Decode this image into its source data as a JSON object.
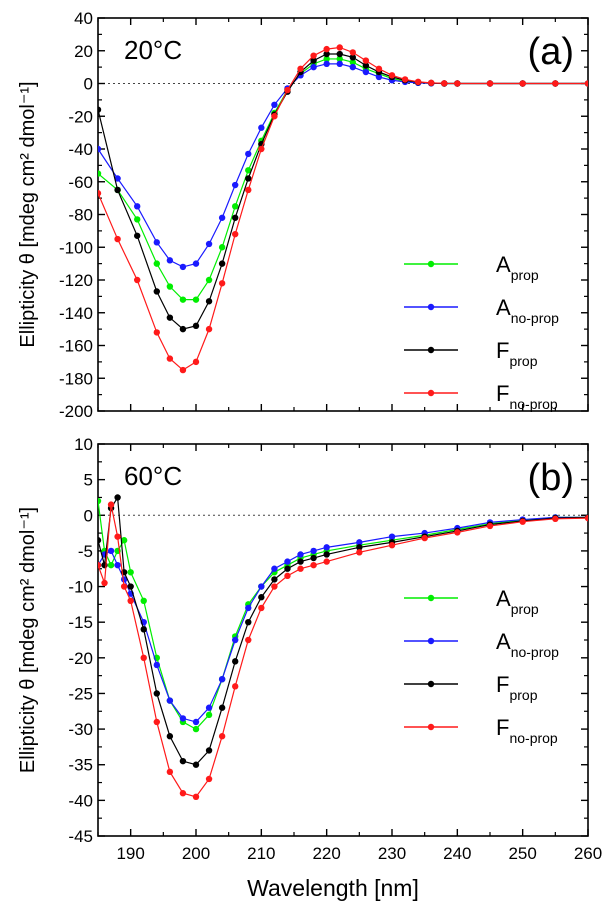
{
  "figure": {
    "xlabel": "Wavelength [nm]",
    "x_ticks": [
      "190",
      "200",
      "210",
      "220",
      "230",
      "240",
      "250",
      "260"
    ]
  },
  "legend_entries": [
    {
      "main": "A",
      "sub": "prop",
      "color": "#00ee00"
    },
    {
      "main": "A",
      "sub": "no-prop",
      "color": "#1a1aff"
    },
    {
      "main": "F",
      "sub": "prop",
      "color": "#000000"
    },
    {
      "main": "F",
      "sub": "no-prop",
      "color": "#ff1a1a"
    }
  ],
  "chart_data": [
    {
      "type": "line",
      "panel_label": "(a)",
      "temperature": "20°C",
      "ylabel": "Ellipticity θ [mdeg cm² dmol⁻¹]",
      "y_ticks": [
        "40",
        "20",
        "0",
        "-20",
        "-40",
        "-60",
        "-80",
        "-100",
        "-120",
        "-140",
        "-160",
        "-180",
        "-200"
      ],
      "xlim": [
        185,
        260
      ],
      "ylim": [
        -200,
        40
      ],
      "zero_line": "dotted",
      "legend_position": "lower-right",
      "series": [
        {
          "name": "A_prop",
          "color": "#00ee00",
          "x": [
            185,
            188,
            191,
            194,
            196,
            198,
            200,
            202,
            204,
            206,
            208,
            210,
            212,
            214,
            216,
            218,
            220,
            222,
            224,
            226,
            228,
            230,
            232,
            234,
            236,
            238,
            240,
            245,
            250,
            255,
            260
          ],
          "y": [
            -55,
            -65,
            -83,
            -110,
            -124,
            -132,
            -132,
            -120,
            -100,
            -75,
            -53,
            -35,
            -18,
            -4,
            6,
            12,
            15,
            15,
            13,
            9,
            6,
            3,
            1.5,
            0.6,
            0.2,
            0,
            0,
            0,
            0,
            0,
            0
          ]
        },
        {
          "name": "A_no-prop",
          "color": "#1a1aff",
          "x": [
            185,
            188,
            191,
            194,
            196,
            198,
            200,
            202,
            204,
            206,
            208,
            210,
            212,
            214,
            216,
            218,
            220,
            222,
            224,
            226,
            228,
            230,
            232,
            234,
            236,
            238,
            240,
            245,
            250,
            255,
            260
          ],
          "y": [
            -40,
            -58,
            -75,
            -97,
            -108,
            -112,
            -110,
            -98,
            -82,
            -62,
            -43,
            -27,
            -13,
            -3,
            5,
            10,
            12,
            12,
            10,
            7,
            4,
            2,
            1,
            0.4,
            0.1,
            0,
            0,
            0,
            0,
            0,
            0
          ]
        },
        {
          "name": "F_prop",
          "color": "#000000",
          "x": [
            185,
            188,
            191,
            194,
            196,
            198,
            200,
            202,
            204,
            206,
            208,
            210,
            212,
            214,
            216,
            218,
            220,
            222,
            224,
            226,
            228,
            230,
            232,
            234,
            236,
            238,
            240,
            245,
            250,
            255,
            260
          ],
          "y": [
            -16,
            -65,
            -93,
            -127,
            -143,
            -150,
            -148,
            -133,
            -110,
            -82,
            -58,
            -37,
            -19,
            -5,
            7,
            14,
            18,
            18,
            16,
            11,
            7,
            4,
            2,
            0.8,
            0.3,
            0,
            0,
            0,
            0,
            0,
            0
          ]
        },
        {
          "name": "F_no-prop",
          "color": "#ff1a1a",
          "x": [
            185,
            188,
            191,
            194,
            196,
            198,
            200,
            202,
            204,
            206,
            208,
            210,
            212,
            214,
            216,
            218,
            220,
            222,
            224,
            226,
            228,
            230,
            232,
            234,
            236,
            238,
            240,
            245,
            250,
            255,
            260
          ],
          "y": [
            -67,
            -95,
            -120,
            -152,
            -168,
            -175,
            -170,
            -150,
            -122,
            -92,
            -65,
            -40,
            -20,
            -4,
            9,
            17,
            21,
            22,
            19,
            14,
            9,
            5,
            2.5,
            1,
            0.4,
            0.1,
            0,
            0,
            0,
            0,
            0
          ]
        }
      ]
    },
    {
      "type": "line",
      "panel_label": "(b)",
      "temperature": "60°C",
      "ylabel": "Ellipticity θ [mdeg cm² dmol⁻¹]",
      "y_ticks": [
        "10",
        "5",
        "0",
        "-5",
        "-10",
        "-15",
        "-20",
        "-25",
        "-30",
        "-35",
        "-40",
        "-45"
      ],
      "xlim": [
        185,
        260
      ],
      "ylim": [
        -45,
        10
      ],
      "zero_line": "dotted",
      "legend_position": "lower-right",
      "series": [
        {
          "name": "A_prop",
          "color": "#00ee00",
          "x": [
            185,
            186,
            187,
            188,
            189,
            190,
            192,
            194,
            196,
            198,
            200,
            202,
            204,
            206,
            208,
            210,
            212,
            214,
            216,
            218,
            220,
            225,
            230,
            235,
            240,
            245,
            250,
            255,
            260
          ],
          "y": [
            2,
            -5,
            -7,
            -5,
            -3.5,
            -8,
            -12,
            -20,
            -26,
            -29,
            -30,
            -28,
            -23,
            -17,
            -12.5,
            -10,
            -8,
            -7,
            -6,
            -5.5,
            -5,
            -4.2,
            -3.5,
            -2.8,
            -2,
            -1.2,
            -0.7,
            -0.3,
            -0.3
          ]
        },
        {
          "name": "A_no-prop",
          "color": "#1a1aff",
          "x": [
            185,
            186,
            187,
            188,
            189,
            190,
            192,
            194,
            196,
            198,
            200,
            202,
            204,
            206,
            208,
            210,
            212,
            214,
            216,
            218,
            220,
            225,
            230,
            235,
            240,
            245,
            250,
            255,
            260
          ],
          "y": [
            -7,
            -5.5,
            -5,
            -7,
            -9,
            -11,
            -15,
            -21,
            -26,
            -28.5,
            -29,
            -27,
            -23,
            -17.5,
            -13,
            -10,
            -7.5,
            -6.5,
            -5.5,
            -5,
            -4.5,
            -3.8,
            -3,
            -2.5,
            -1.8,
            -1,
            -0.6,
            -0.3,
            -0.3
          ]
        },
        {
          "name": "F_prop",
          "color": "#000000",
          "x": [
            185,
            186,
            187,
            188,
            189,
            190,
            192,
            194,
            196,
            198,
            200,
            202,
            204,
            206,
            208,
            210,
            212,
            214,
            216,
            218,
            220,
            225,
            230,
            235,
            240,
            245,
            250,
            255,
            260
          ],
          "y": [
            -3.5,
            -7,
            1,
            2.5,
            -8,
            -10,
            -16,
            -25,
            -31,
            -34.5,
            -35,
            -33,
            -27,
            -20.5,
            -15,
            -11.5,
            -9,
            -7.5,
            -6.5,
            -6,
            -5.5,
            -4.5,
            -3.8,
            -3,
            -2.2,
            -1.3,
            -0.8,
            -0.4,
            -0.3
          ]
        },
        {
          "name": "F_no-prop",
          "color": "#ff1a1a",
          "x": [
            185,
            186,
            187,
            188,
            189,
            190,
            192,
            194,
            196,
            198,
            200,
            202,
            204,
            206,
            208,
            210,
            212,
            214,
            216,
            218,
            220,
            225,
            230,
            235,
            240,
            245,
            250,
            255,
            260
          ],
          "y": [
            -7,
            -9.5,
            1.5,
            -3,
            -10,
            -12,
            -20,
            -29,
            -36,
            -39,
            -39.5,
            -37,
            -31,
            -24,
            -17.5,
            -13,
            -10,
            -8.5,
            -7.5,
            -7,
            -6.5,
            -5.2,
            -4.2,
            -3.2,
            -2.4,
            -1.5,
            -0.9,
            -0.5,
            -0.4
          ]
        }
      ]
    }
  ]
}
